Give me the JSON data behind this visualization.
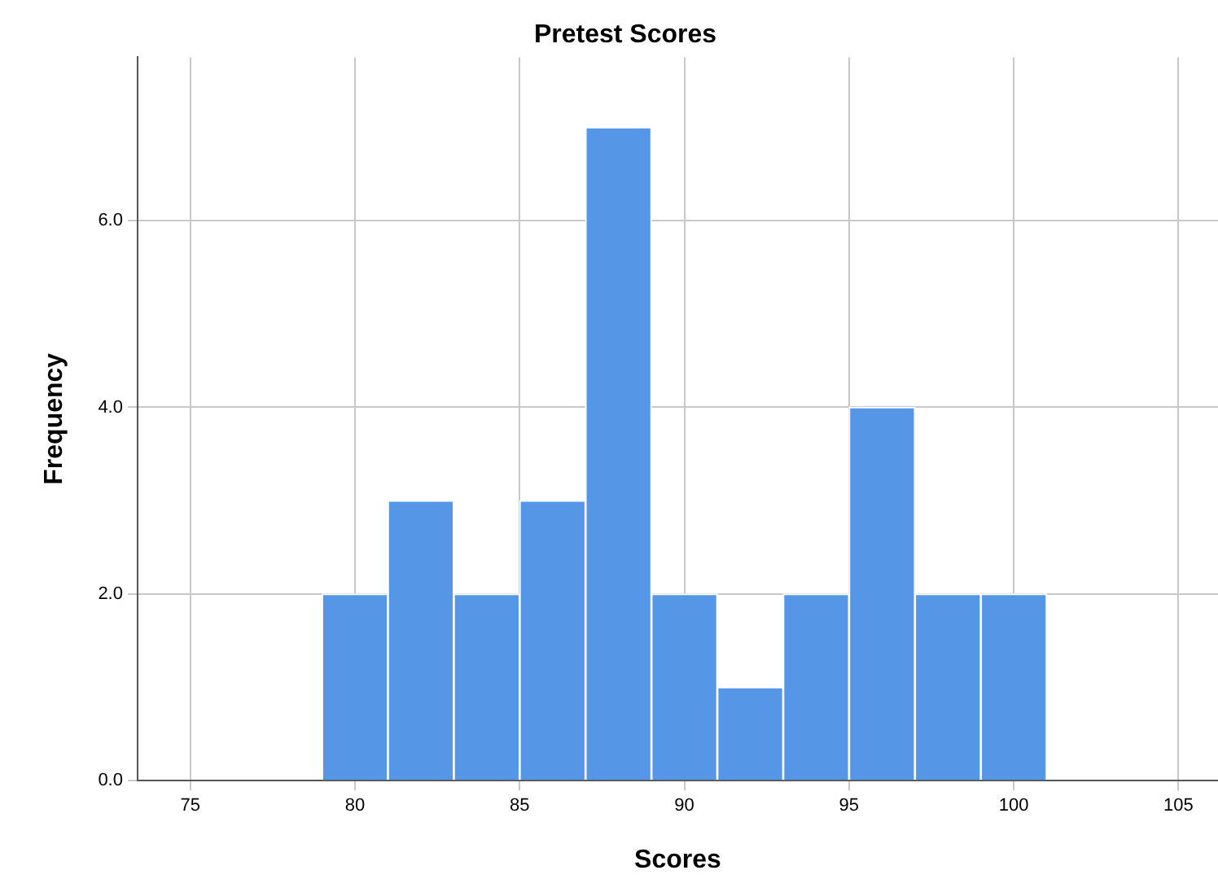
{
  "chart_data": {
    "type": "histogram",
    "title": "Pretest Scores",
    "xlabel": "Scores",
    "ylabel": "Frequency",
    "bins": [
      79,
      81,
      83,
      85,
      87,
      89,
      91,
      93,
      95,
      97,
      99,
      101
    ],
    "values": [
      2,
      3,
      2,
      3,
      7,
      2,
      1,
      2,
      4,
      2,
      2
    ],
    "color": "#5596e6",
    "xlim": [
      73.4,
      106.2
    ],
    "xticks": [
      75,
      80,
      85,
      90,
      95,
      100,
      105
    ],
    "ylim": [
      0,
      7.75
    ],
    "yticks": [
      {
        "value": 0,
        "label": "0.0"
      },
      {
        "value": 2,
        "label": "2.0"
      },
      {
        "value": 4,
        "label": "4.0"
      },
      {
        "value": 6,
        "label": "6.0"
      }
    ],
    "grid": true,
    "legend": false
  }
}
